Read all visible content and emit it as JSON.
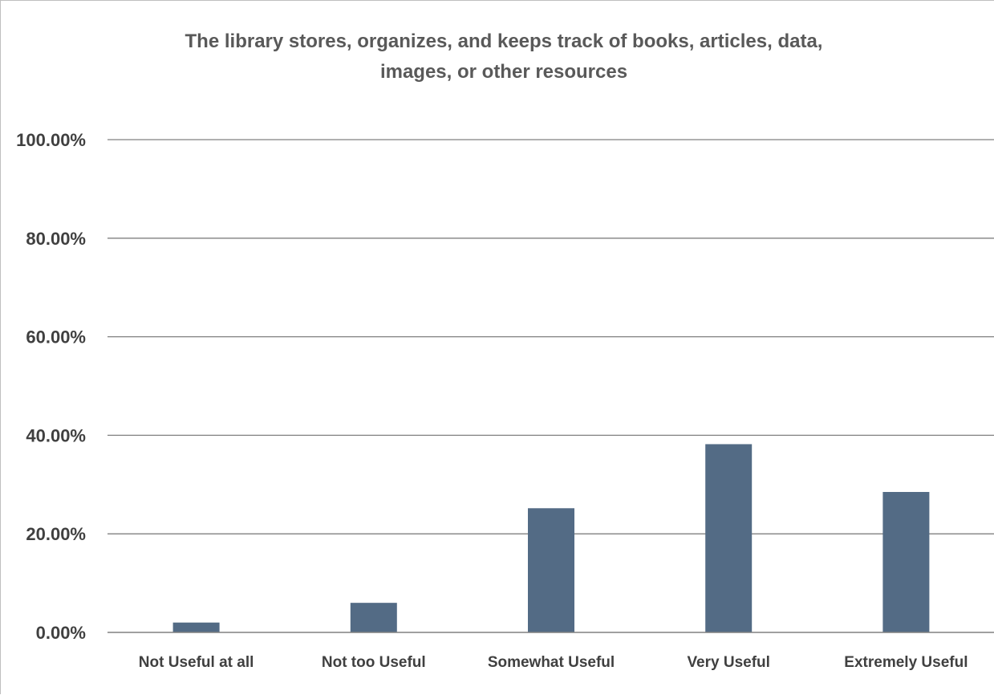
{
  "chart_data": {
    "type": "bar",
    "title_lines": [
      "The library stores, organizes, and keeps track of books, articles, data,",
      "images, or other resources"
    ],
    "categories": [
      "Not Useful at all",
      "Not too Useful",
      "Somewhat Useful",
      "Very Useful",
      "Extremely Useful"
    ],
    "values": [
      2.0,
      6.0,
      25.2,
      38.2,
      28.5
    ],
    "ylim": [
      0,
      100
    ],
    "yticks": [
      0,
      20,
      40,
      60,
      80,
      100
    ],
    "ytick_labels": [
      "0.00%",
      "20.00%",
      "40.00%",
      "60.00%",
      "80.00%",
      "100.00%"
    ],
    "grid": true,
    "legend": "none",
    "colors": {
      "bar": "#536b85",
      "grid": "#808080",
      "axis": "#808080"
    }
  }
}
